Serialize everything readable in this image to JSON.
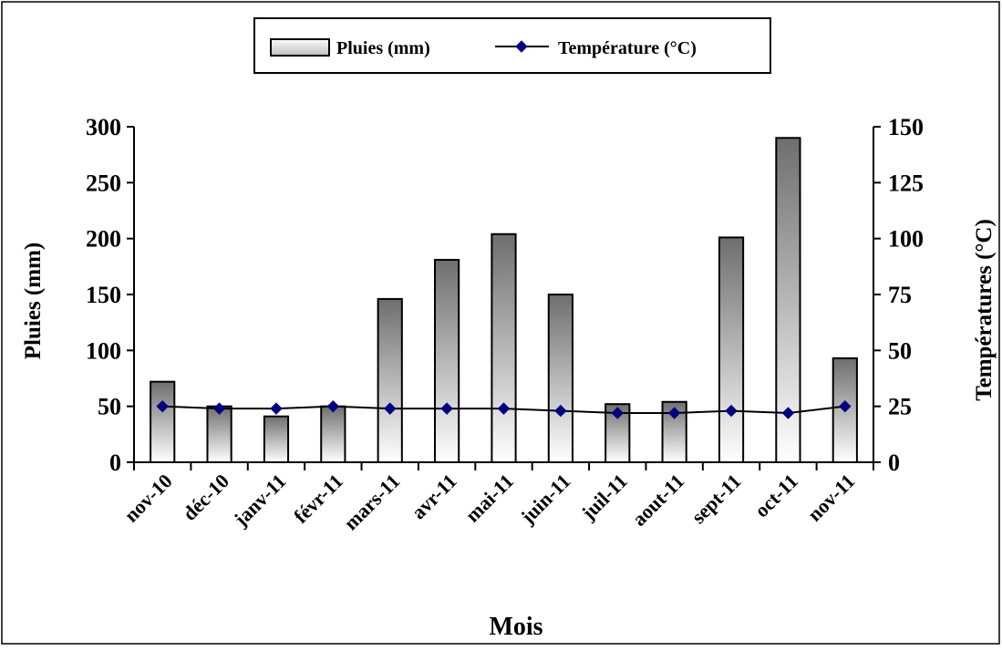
{
  "chart_data": {
    "type": "bar",
    "categories": [
      "nov-10",
      "déc-10",
      "janv-11",
      "févr-11",
      "mars-11",
      "avr-11",
      "mai-11",
      "juin-11",
      "juil-11",
      "aout-11",
      "sept-11",
      "oct-11",
      "nov-11"
    ],
    "series": [
      {
        "name": "Pluies (mm)",
        "type": "bar",
        "axis": "left",
        "values": [
          72,
          50,
          41,
          50,
          146,
          181,
          204,
          150,
          52,
          54,
          201,
          290,
          93
        ]
      },
      {
        "name": "Température (°C)",
        "type": "line",
        "axis": "right",
        "values": [
          25,
          24,
          24,
          25,
          24,
          24,
          24,
          23,
          22,
          22,
          23,
          22,
          25
        ]
      }
    ],
    "xlabel": "Mois",
    "ylabel": "Pluies (mm)",
    "y2label": "Températures (°C)",
    "ylim": [
      0,
      300
    ],
    "y2lim": [
      0,
      150
    ],
    "yticks": [
      "0",
      "50",
      "100",
      "150",
      "200",
      "250",
      "300"
    ],
    "y2ticks": [
      "0",
      "25",
      "50",
      "75",
      "100",
      "125",
      "150"
    ],
    "grid": false,
    "legend_position": "top-center",
    "colors": {
      "bar_top": "#6e6e6e",
      "bar_bottom": "#ffffff",
      "line": "#000000",
      "marker": "#000080"
    }
  }
}
